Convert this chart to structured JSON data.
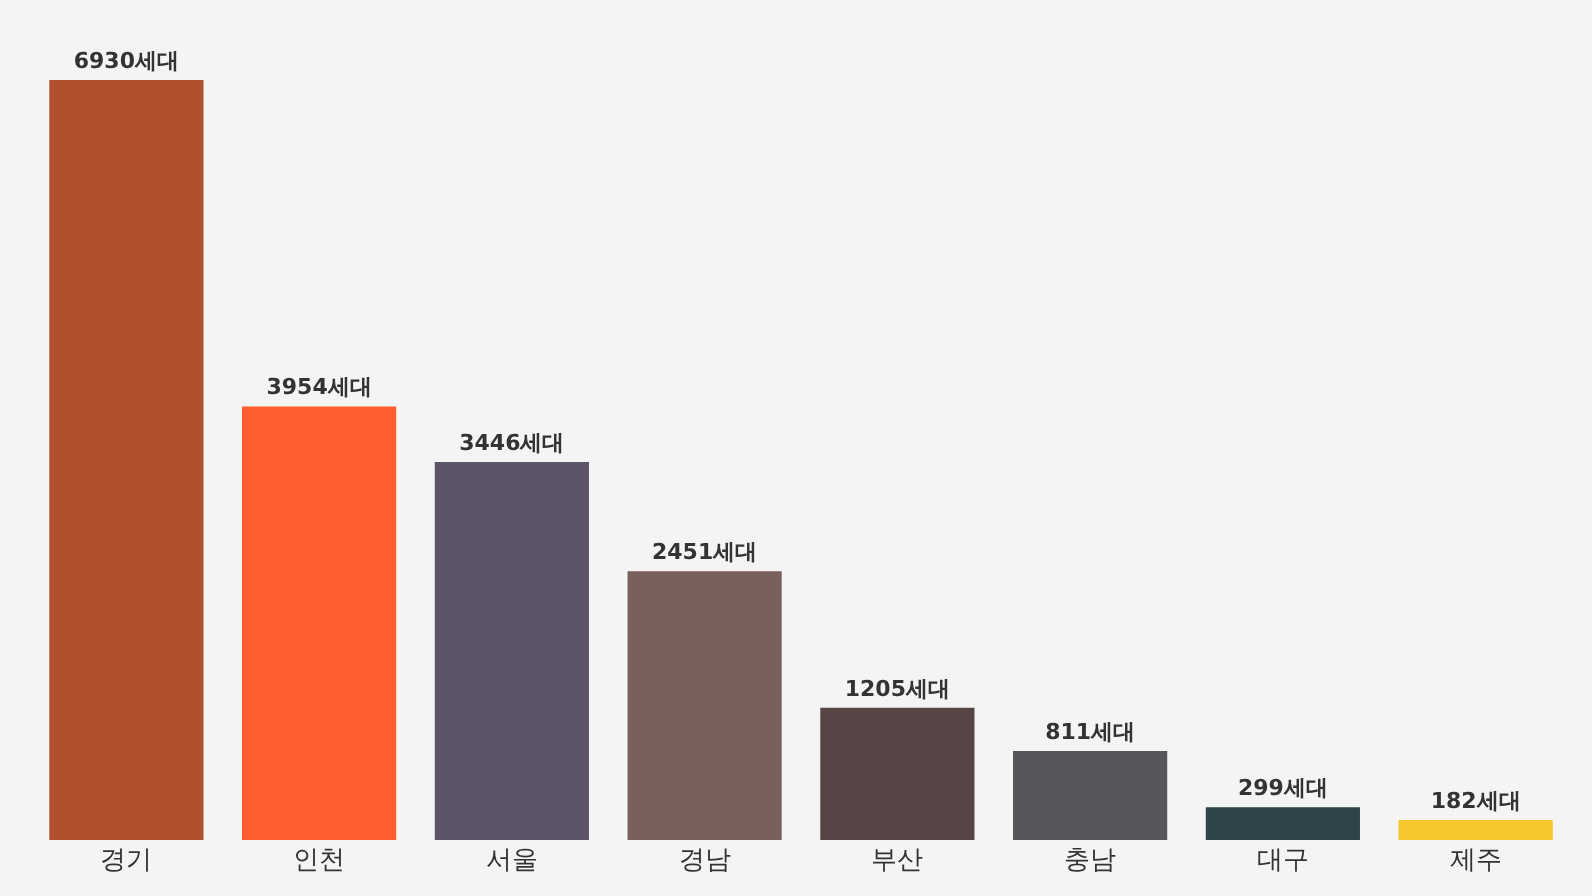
{
  "chart_data": {
    "type": "bar",
    "categories": [
      "경기",
      "인천",
      "서울",
      "경남",
      "부산",
      "충남",
      "대구",
      "제주"
    ],
    "values": [
      6930,
      3954,
      3446,
      2451,
      1205,
      811,
      299,
      182
    ],
    "value_labels": [
      "6930세대",
      "3954세대",
      "3446세대",
      "2451세대",
      "1205세대",
      "811세대",
      "299세대",
      "182세대"
    ],
    "colors": [
      "#b0502e",
      "#ff5f2e",
      "#5e5468",
      "#7a605c",
      "#574444",
      "#57575b",
      "#2e4448",
      "#f7c52e"
    ],
    "grid": false,
    "tick_labels": "x"
  }
}
